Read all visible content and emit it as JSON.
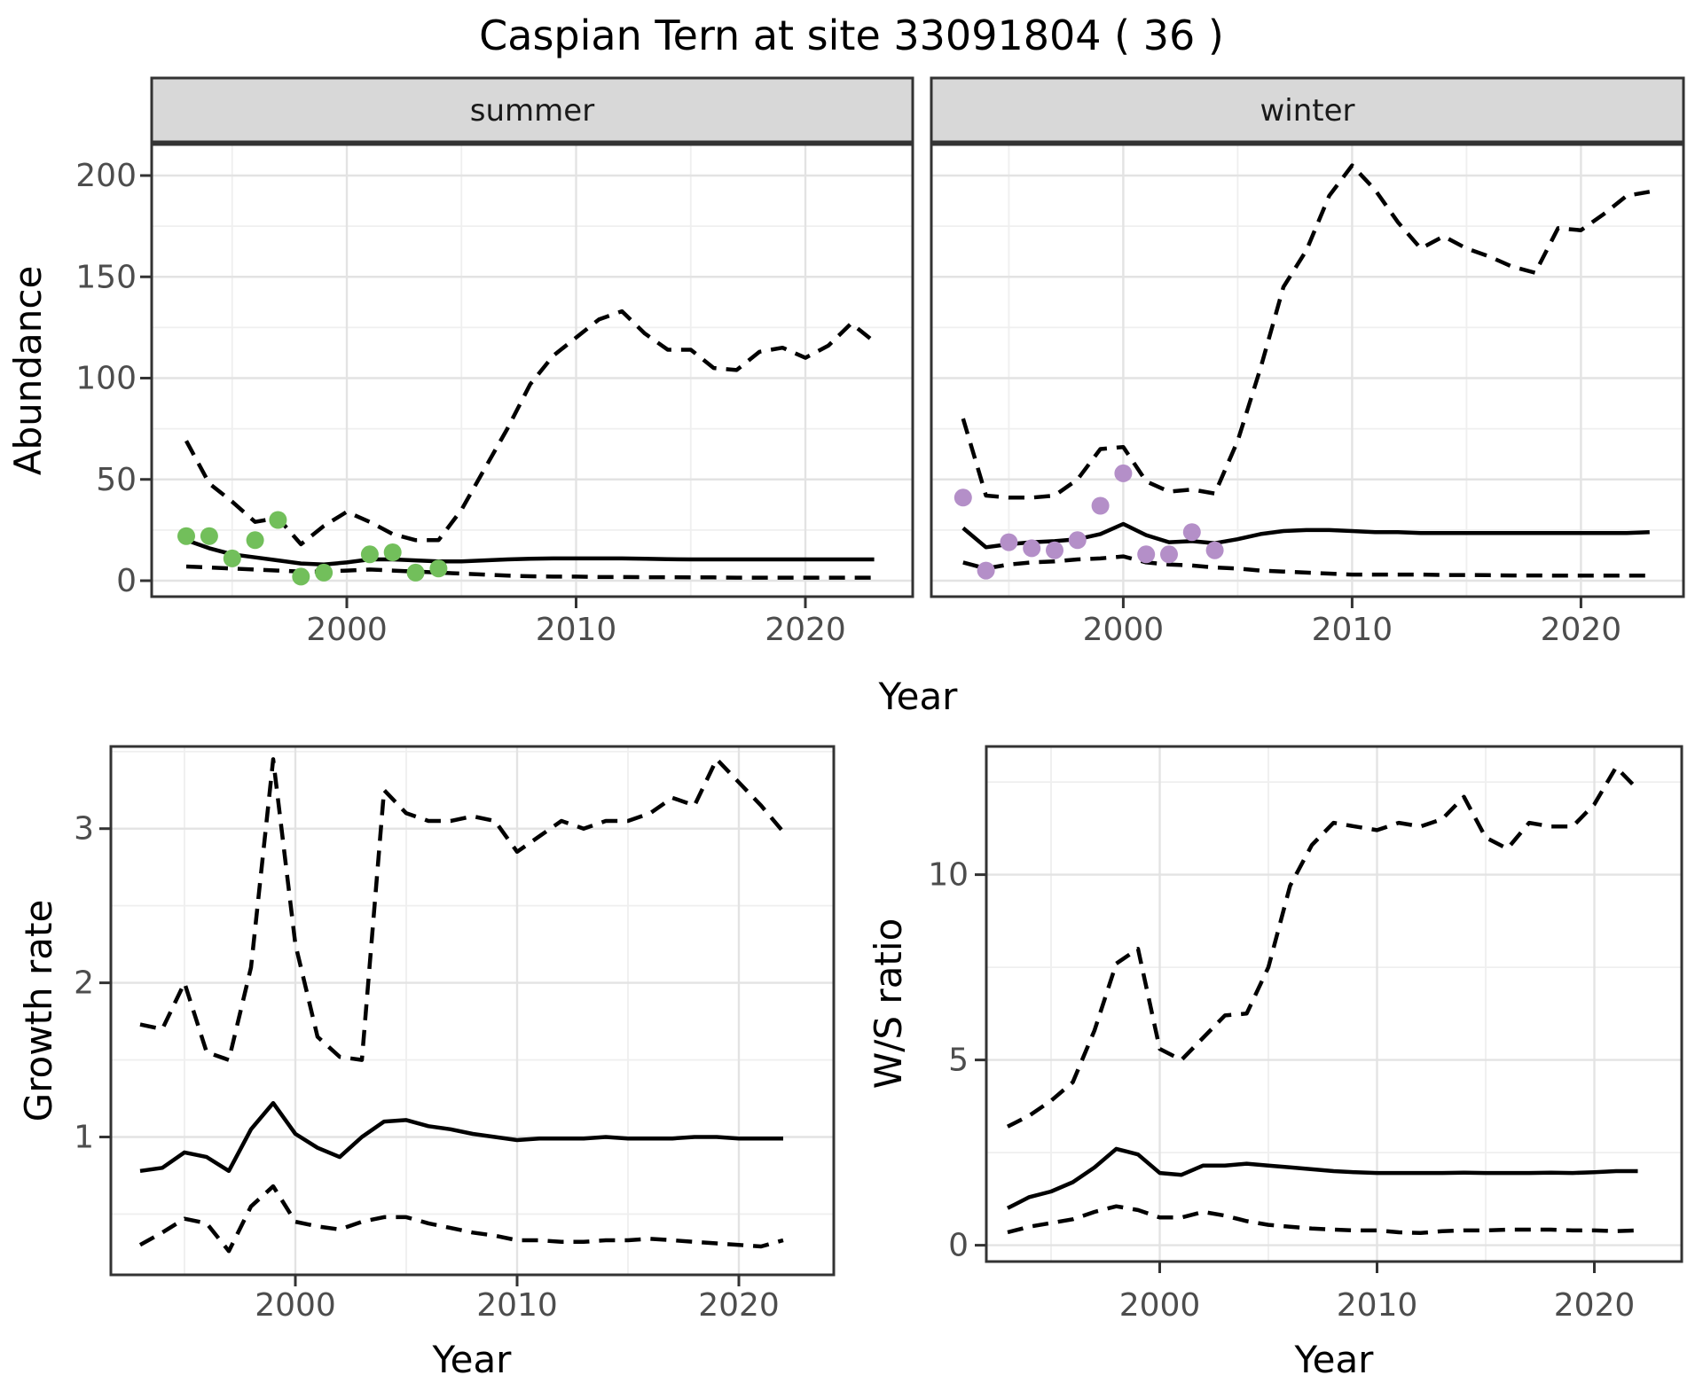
{
  "title": "Caspian Tern at site 33091804 ( 36 )",
  "labels": {
    "year": "Year",
    "abundance": "Abundance",
    "growth": "Growth rate",
    "ws": "W/S ratio"
  },
  "colors": {
    "summer_points": "#72BF5B",
    "winter_points": "#B48FC8",
    "line": "#000000",
    "panel_border": "#333333",
    "grid_major": "#e3e3e3",
    "grid_minor": "#efefef",
    "strip_background": "#d8d8d8",
    "axis_text": "#4d4d4d"
  },
  "chart_data": [
    {
      "id": "abundance-summer",
      "type": "line",
      "facet": "summer",
      "xlabel": "Year",
      "ylabel": "Abundance",
      "xlim": [
        1991.5,
        2024.7
      ],
      "ylim": [
        -17,
        214
      ],
      "xticks": [
        2000,
        2010,
        2020
      ],
      "xticks_minor": [
        1995,
        2005,
        2015
      ],
      "yticks": [
        0,
        50,
        100,
        150,
        200
      ],
      "yticks_minor": [
        25,
        75,
        125,
        175
      ],
      "x": [
        1993,
        1994,
        1995,
        1996,
        1997,
        1998,
        1999,
        2000,
        2001,
        2002,
        2003,
        2004,
        2005,
        2006,
        2007,
        2008,
        2009,
        2010,
        2011,
        2012,
        2013,
        2014,
        2015,
        2016,
        2017,
        2018,
        2019,
        2020,
        2021,
        2022,
        2023
      ],
      "series": [
        {
          "name": "lower_ci",
          "style": "dashed",
          "values": [
            7,
            6.5,
            6,
            5.5,
            5,
            4.5,
            4.5,
            5,
            5.5,
            5,
            4.5,
            4,
            3.5,
            3,
            2.5,
            2.2,
            2,
            2,
            1.8,
            1.8,
            1.7,
            1.7,
            1.6,
            1.6,
            1.5,
            1.5,
            1.5,
            1.5,
            1.5,
            1.5,
            1.5
          ]
        },
        {
          "name": "upper_ci",
          "style": "dashed",
          "values": [
            69,
            48,
            39,
            29,
            31,
            18,
            27,
            34,
            29,
            23,
            20,
            20,
            35,
            55,
            75,
            97,
            111,
            120,
            129,
            133,
            122,
            114,
            114,
            105,
            104,
            113,
            115,
            110,
            116,
            127,
            118
          ]
        },
        {
          "name": "median",
          "style": "solid",
          "values": [
            20,
            16,
            13,
            11.5,
            10,
            8.5,
            8,
            9,
            10.5,
            10.5,
            10,
            9.5,
            9.5,
            10,
            10.5,
            10.8,
            11,
            11,
            11,
            11,
            10.8,
            10.6,
            10.5,
            10.5,
            10.5,
            10.5,
            10.5,
            10.5,
            10.5,
            10.5,
            10.5
          ]
        }
      ],
      "points": {
        "name": "observed",
        "color": "#72BF5B",
        "years": [
          1993,
          1994,
          1995,
          1996,
          1997,
          1998,
          1999,
          2001,
          2002,
          2003,
          2004
        ],
        "values": [
          22,
          22,
          11,
          20,
          30,
          2,
          4,
          13,
          14,
          4,
          6
        ]
      }
    },
    {
      "id": "abundance-winter",
      "type": "line",
      "facet": "winter",
      "xlabel": "Year",
      "ylabel": "Abundance",
      "xlim": [
        1991.5,
        2024.7
      ],
      "ylim": [
        -17,
        214
      ],
      "xticks": [
        2000,
        2010,
        2020
      ],
      "xticks_minor": [
        1995,
        2005,
        2015
      ],
      "yticks": [
        0,
        50,
        100,
        150,
        200
      ],
      "yticks_minor": [
        25,
        75,
        125,
        175
      ],
      "x": [
        1993,
        1994,
        1995,
        1996,
        1997,
        1998,
        1999,
        2000,
        2001,
        2002,
        2003,
        2004,
        2005,
        2006,
        2007,
        2008,
        2009,
        2010,
        2011,
        2012,
        2013,
        2014,
        2015,
        2016,
        2017,
        2018,
        2019,
        2020,
        2021,
        2022,
        2023
      ],
      "series": [
        {
          "name": "lower_ci",
          "style": "dashed",
          "values": [
            9,
            6,
            8,
            9,
            9.5,
            10.5,
            11,
            12,
            9,
            8,
            7.5,
            6.5,
            6,
            5,
            4.5,
            4,
            3.5,
            3,
            3,
            3,
            3,
            2.8,
            2.8,
            2.7,
            2.6,
            2.6,
            2.5,
            2.5,
            2.5,
            2.5,
            2.5
          ]
        },
        {
          "name": "upper_ci",
          "style": "dashed",
          "values": [
            80,
            42,
            41,
            41,
            42,
            50,
            65,
            66,
            49,
            44,
            45,
            43,
            69,
            105,
            145,
            163,
            190,
            205,
            193,
            177,
            164,
            170,
            164,
            160,
            155,
            152,
            174,
            173,
            181,
            190,
            192
          ]
        },
        {
          "name": "median",
          "style": "solid",
          "values": [
            26,
            16.5,
            18,
            19,
            19.5,
            20.5,
            23,
            28,
            22.5,
            19,
            19.5,
            18.5,
            20.5,
            23,
            24.5,
            25,
            25,
            24.5,
            24,
            24,
            23.5,
            23.5,
            23.5,
            23.5,
            23.5,
            23.5,
            23.5,
            23.5,
            23.5,
            23.5,
            24
          ]
        }
      ],
      "points": {
        "name": "observed",
        "color": "#B48FC8",
        "years": [
          1993,
          1994,
          1995,
          1996,
          1997,
          1998,
          1999,
          2000,
          2001,
          2002,
          2003,
          2004
        ],
        "values": [
          41,
          5,
          19,
          16,
          15,
          20,
          37,
          53,
          13,
          13,
          24,
          15
        ]
      }
    },
    {
      "id": "growth-rate",
      "type": "line",
      "facet": null,
      "xlabel": "Year",
      "ylabel": "Growth rate",
      "xlim": [
        1991.6,
        2024.2
      ],
      "ylim": [
        0.1,
        3.55
      ],
      "xticks": [
        2000,
        2010,
        2020
      ],
      "xticks_minor": [
        1995,
        2005,
        2015
      ],
      "yticks": [
        1,
        2,
        3
      ],
      "yticks_minor": [
        0.5,
        1.5,
        2.5,
        3.5
      ],
      "x": [
        1993,
        1994,
        1995,
        1996,
        1997,
        1998,
        1999,
        2000,
        2001,
        2002,
        2003,
        2004,
        2005,
        2006,
        2007,
        2008,
        2009,
        2010,
        2011,
        2012,
        2013,
        2014,
        2015,
        2016,
        2017,
        2018,
        2019,
        2020,
        2021,
        2022
      ],
      "series": [
        {
          "name": "lower_ci",
          "style": "dashed",
          "values": [
            0.3,
            0.38,
            0.47,
            0.44,
            0.26,
            0.55,
            0.68,
            0.45,
            0.42,
            0.4,
            0.45,
            0.48,
            0.48,
            0.44,
            0.41,
            0.38,
            0.36,
            0.33,
            0.33,
            0.32,
            0.32,
            0.33,
            0.33,
            0.34,
            0.33,
            0.32,
            0.31,
            0.3,
            0.29,
            0.33
          ]
        },
        {
          "name": "upper_ci",
          "style": "dashed",
          "values": [
            1.73,
            1.7,
            2.0,
            1.55,
            1.5,
            2.1,
            3.45,
            2.25,
            1.65,
            1.52,
            1.5,
            3.25,
            3.1,
            3.05,
            3.05,
            3.08,
            3.05,
            2.85,
            2.95,
            3.05,
            3.0,
            3.05,
            3.05,
            3.1,
            3.2,
            3.15,
            3.45,
            3.3,
            3.15,
            2.98
          ]
        },
        {
          "name": "median",
          "style": "solid",
          "values": [
            0.78,
            0.8,
            0.9,
            0.87,
            0.78,
            1.05,
            1.22,
            1.02,
            0.93,
            0.87,
            1.0,
            1.1,
            1.11,
            1.07,
            1.05,
            1.02,
            1.0,
            0.98,
            0.99,
            0.99,
            0.99,
            1.0,
            0.99,
            0.99,
            0.99,
            1.0,
            1.0,
            0.99,
            0.99,
            0.99
          ]
        }
      ],
      "points": null
    },
    {
      "id": "ws-ratio",
      "type": "line",
      "facet": null,
      "xlabel": "Year",
      "ylabel": "W/S ratio",
      "xlim": [
        1992.0,
        2024.0
      ],
      "ylim": [
        -0.45,
        13.45
      ],
      "xticks": [
        2000,
        2010,
        2020
      ],
      "xticks_minor": [
        1995,
        2005,
        2015
      ],
      "yticks": [
        0,
        5,
        10
      ],
      "yticks_minor": [
        2.5,
        7.5,
        12.5
      ],
      "x": [
        1993,
        1994,
        1995,
        1996,
        1997,
        1998,
        1999,
        2000,
        2001,
        2002,
        2003,
        2004,
        2005,
        2006,
        2007,
        2008,
        2009,
        2010,
        2011,
        2012,
        2013,
        2014,
        2015,
        2016,
        2017,
        2018,
        2019,
        2020,
        2021,
        2022
      ],
      "series": [
        {
          "name": "lower_ci",
          "style": "dashed",
          "values": [
            0.35,
            0.5,
            0.6,
            0.7,
            0.9,
            1.05,
            0.95,
            0.75,
            0.75,
            0.9,
            0.8,
            0.65,
            0.55,
            0.5,
            0.45,
            0.42,
            0.4,
            0.4,
            0.35,
            0.33,
            0.38,
            0.4,
            0.4,
            0.42,
            0.42,
            0.42,
            0.4,
            0.4,
            0.38,
            0.4
          ]
        },
        {
          "name": "upper_ci",
          "style": "dashed",
          "values": [
            3.2,
            3.5,
            3.9,
            4.4,
            5.8,
            7.6,
            8.0,
            5.3,
            5.0,
            5.6,
            6.2,
            6.25,
            7.5,
            9.7,
            10.8,
            11.4,
            11.3,
            11.2,
            11.4,
            11.3,
            11.5,
            12.1,
            11.0,
            10.7,
            11.4,
            11.3,
            11.3,
            11.9,
            12.9,
            12.3
          ]
        },
        {
          "name": "median",
          "style": "solid",
          "values": [
            1.0,
            1.3,
            1.45,
            1.7,
            2.1,
            2.6,
            2.45,
            1.95,
            1.9,
            2.15,
            2.15,
            2.2,
            2.15,
            2.1,
            2.05,
            2.0,
            1.97,
            1.95,
            1.95,
            1.95,
            1.95,
            1.96,
            1.95,
            1.95,
            1.95,
            1.96,
            1.95,
            1.97,
            2.0,
            2.0
          ]
        }
      ],
      "points": null
    }
  ]
}
